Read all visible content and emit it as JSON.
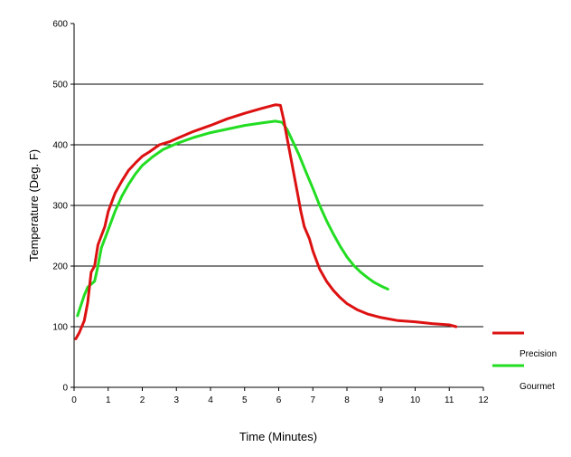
{
  "chart_data": {
    "type": "line",
    "xlabel": "Time (Minutes)",
    "ylabel": "Temperature (Deg. F)",
    "xlim": [
      0,
      12
    ],
    "ylim": [
      0,
      600
    ],
    "xticks": [
      0,
      1,
      2,
      3,
      4,
      5,
      6,
      7,
      8,
      9,
      10,
      11,
      12
    ],
    "yticks": [
      0,
      100,
      200,
      300,
      400,
      500,
      600
    ],
    "grid": "horizontal",
    "legend_position": "right",
    "series": [
      {
        "name": "Precision",
        "color": "#dd1111",
        "x": [
          0.05,
          0.15,
          0.3,
          0.4,
          0.5,
          0.6,
          0.7,
          0.8,
          0.9,
          1.0,
          1.2,
          1.4,
          1.6,
          1.8,
          2.0,
          2.2,
          2.5,
          2.8,
          3.0,
          3.5,
          4.0,
          4.5,
          5.0,
          5.5,
          5.9,
          6.05,
          6.15,
          6.25,
          6.35,
          6.45,
          6.55,
          6.65,
          6.75,
          6.9,
          7.0,
          7.2,
          7.4,
          7.6,
          7.8,
          8.0,
          8.3,
          8.6,
          9.0,
          9.5,
          10.0,
          10.5,
          11.0,
          11.2
        ],
        "y": [
          80,
          90,
          110,
          140,
          190,
          200,
          235,
          250,
          265,
          290,
          320,
          340,
          358,
          370,
          381,
          388,
          400,
          405,
          410,
          422,
          432,
          443,
          452,
          460,
          466,
          465,
          440,
          410,
          380,
          350,
          320,
          290,
          265,
          245,
          225,
          195,
          175,
          160,
          148,
          138,
          128,
          121,
          115,
          110,
          108,
          105,
          103,
          100
        ]
      },
      {
        "name": "Gourmet",
        "color": "#22dd22",
        "x": [
          0.1,
          0.2,
          0.3,
          0.4,
          0.6,
          0.7,
          0.8,
          1.0,
          1.2,
          1.4,
          1.6,
          1.8,
          2.0,
          2.3,
          2.6,
          3.0,
          3.5,
          4.0,
          4.5,
          5.0,
          5.5,
          5.9,
          6.1,
          6.25,
          6.4,
          6.6,
          6.8,
          7.0,
          7.2,
          7.4,
          7.6,
          7.8,
          8.0,
          8.2,
          8.4,
          8.6,
          8.8,
          9.0,
          9.2
        ],
        "y": [
          118,
          135,
          152,
          165,
          175,
          200,
          230,
          260,
          290,
          315,
          335,
          352,
          366,
          380,
          392,
          402,
          412,
          420,
          426,
          432,
          436,
          439,
          437,
          425,
          407,
          383,
          355,
          328,
          300,
          275,
          253,
          233,
          215,
          201,
          190,
          181,
          173,
          167,
          162
        ]
      }
    ]
  }
}
